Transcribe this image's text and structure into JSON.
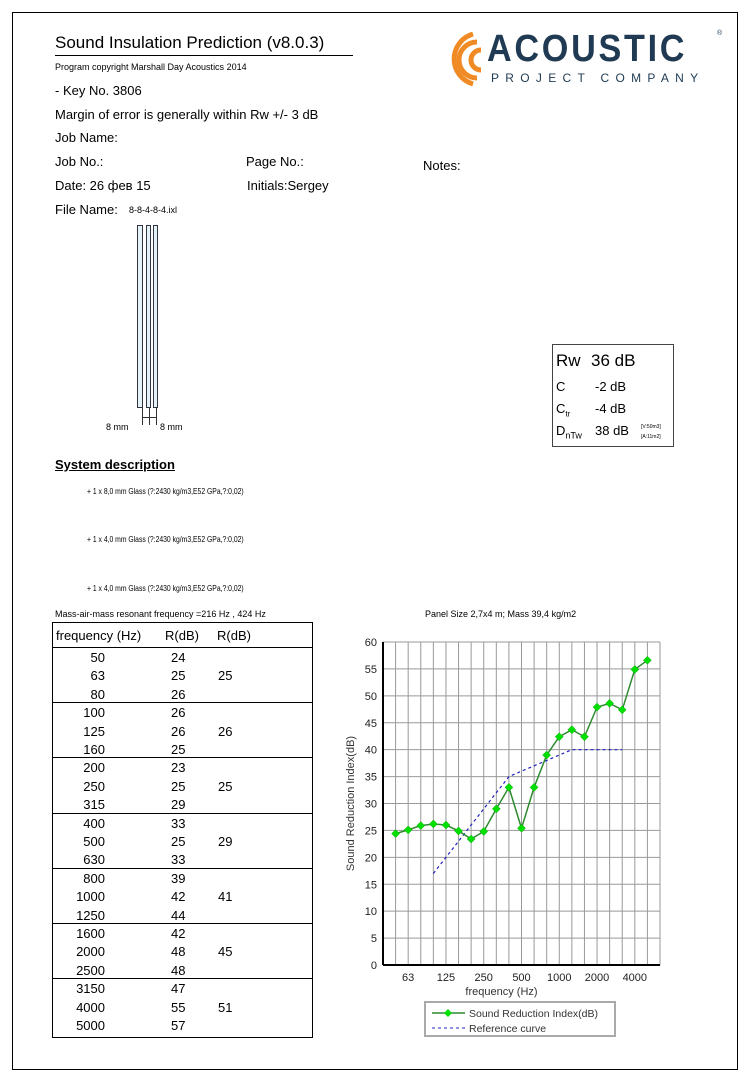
{
  "header": {
    "title": "Sound Insulation Prediction (v8.0.3)",
    "copyright": "Program copyright   Marshall Day Acoustics 2014",
    "key_no": " - Key No. 3806",
    "margin": "Margin of error is generally within  Rw +/- 3 dB",
    "job_name": "Job Name:",
    "job_no": "Job No.:",
    "page_no": "Page No.:",
    "notes": "Notes:",
    "date": "Date:  26 фев 15",
    "initials": "Initials:Sergey",
    "file_name_label": "File Name:",
    "file_name": "8-8-4-8-4.ixl"
  },
  "logo": {
    "word": "ACOUSTIC",
    "sub": "PROJECT COMPANY",
    "reg": "®",
    "colors": {
      "orange": "#f08a24",
      "navy": "#1f3a52"
    }
  },
  "drawing": {
    "left_label": "8 mm",
    "right_label": "8 mm"
  },
  "ratings": {
    "rw_label": "Rw",
    "rw": "36 dB",
    "c_label": "C",
    "c": "-2 dB",
    "ctr_label": "C",
    "ctr_sub": "tr",
    "ctr": "-4 dB",
    "dntw_label": "D",
    "dntw_sub": "nTw",
    "dntw": "38 dB",
    "v": "[V:50m3]",
    "a": "[A:11m2]"
  },
  "system": {
    "heading": "System description",
    "layers": [
      "+ 1 x 8,0 mm Glass (?:2430 kg/m3,E52 GPa,?:0,02)",
      "+ 1 x 4,0 mm Glass (?:2430 kg/m3,E52 GPa,?:0,02)",
      "+ 1 x 4,0 mm Glass (?:2430 kg/m3,E52 GPa,?:0,02)"
    ],
    "resonance": "Mass-air-mass resonant frequency =216 Hz , 424 Hz",
    "panel": "Panel Size 2,7x4 m; Mass 39,4 kg/m2"
  },
  "table": {
    "headers": [
      "frequency (Hz)",
      "R(dB)",
      "R(dB)"
    ],
    "rows": [
      [
        "50",
        "24"
      ],
      [
        "63",
        "25",
        "25"
      ],
      [
        "80",
        "26"
      ],
      [
        "100",
        "26"
      ],
      [
        "125",
        "26",
        "26"
      ],
      [
        "160",
        "25"
      ],
      [
        "200",
        "23"
      ],
      [
        "250",
        "25",
        "25"
      ],
      [
        "315",
        "29"
      ],
      [
        "400",
        "33"
      ],
      [
        "500",
        "25",
        "29"
      ],
      [
        "630",
        "33"
      ],
      [
        "800",
        "39"
      ],
      [
        "1000",
        "42",
        "41"
      ],
      [
        "1250",
        "44"
      ],
      [
        "1600",
        "42"
      ],
      [
        "2000",
        "48",
        "45"
      ],
      [
        "2500",
        "48"
      ],
      [
        "3150",
        "47"
      ],
      [
        "4000",
        "55",
        "51"
      ],
      [
        "5000",
        "57"
      ]
    ]
  },
  "chart_data": {
    "type": "line",
    "xlabel": "frequency (Hz)",
    "ylabel": "Sound Reduction Index(dB)",
    "ylim": [
      0,
      60
    ],
    "yticks": [
      0,
      5,
      10,
      15,
      20,
      25,
      30,
      35,
      40,
      45,
      50,
      55,
      60
    ],
    "xscale": "log (1/3 octave)",
    "xticks": [
      "63",
      "125",
      "250",
      "500",
      "1000",
      "2000",
      "4000"
    ],
    "grid": true,
    "legend": "bottom",
    "x": [
      50,
      63,
      80,
      100,
      125,
      160,
      200,
      250,
      315,
      400,
      500,
      630,
      800,
      1000,
      1250,
      1600,
      2000,
      2500,
      3150,
      4000,
      5000
    ],
    "series": [
      {
        "name": "Sound Reduction Index(dB)",
        "color": "#2e8b2e",
        "marker": "#00e000",
        "values": [
          24.4,
          25.1,
          25.9,
          26.2,
          26,
          24.9,
          23.4,
          24.8,
          29,
          33,
          25.4,
          33,
          39,
          42.4,
          43.7,
          42.4,
          47.9,
          48.6,
          47.4,
          54.9,
          56.6
        ]
      },
      {
        "name": "Reference curve",
        "color": "#2020c0",
        "values": [
          null,
          null,
          null,
          17,
          20,
          23,
          26,
          29,
          32,
          35,
          36,
          37,
          38,
          39,
          40,
          40,
          40,
          40,
          40,
          null,
          null
        ]
      }
    ]
  }
}
